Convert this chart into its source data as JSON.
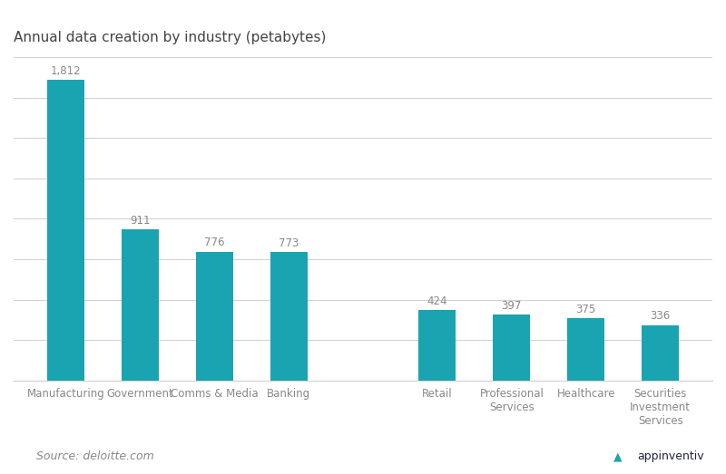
{
  "title": "Annual data creation by industry (petabytes)",
  "categories": [
    "Manufacturing",
    "Government",
    "Comms & Media",
    "Banking",
    "",
    "Retail",
    "Professional\nServices",
    "Healthcare",
    "Securities\nInvestment\nServices"
  ],
  "values": [
    1812,
    911,
    776,
    773,
    0,
    424,
    397,
    375,
    336
  ],
  "bar_color": "#1aa3b1",
  "bar_width": 0.5,
  "ylim": [
    0,
    1950
  ],
  "source_text": "Source: deloitte.com",
  "value_labels": [
    "1,812",
    "911",
    "776",
    "773",
    "",
    "424",
    "397",
    "375",
    "336"
  ],
  "title_fontsize": 11,
  "label_fontsize": 8.5,
  "tick_fontsize": 8.5,
  "source_fontsize": 9,
  "background_color": "#ffffff",
  "grid_color": "#d0d0d0",
  "text_color": "#888888",
  "num_gridlines": 8
}
